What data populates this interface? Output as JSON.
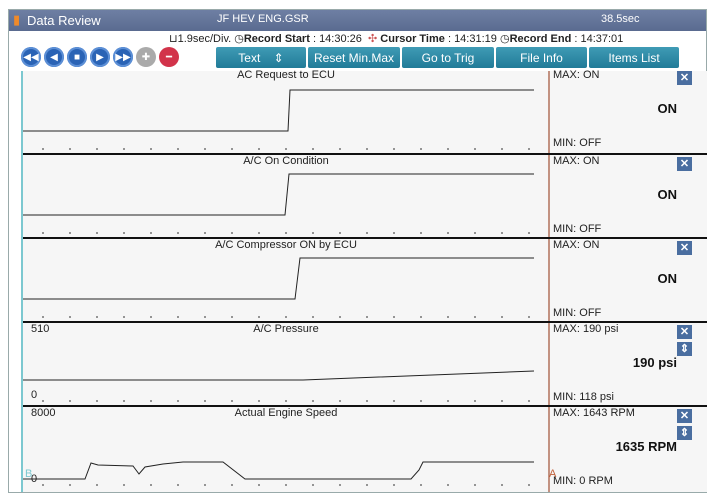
{
  "title": {
    "app": "Data Review",
    "file": "JF HEV ENG.GSR",
    "duration": "38.5sec"
  },
  "info": {
    "division": "1.9sec/Div.",
    "record_start_label": "Record Start",
    "record_start": "14:30:26",
    "cursor_time_label": "Cursor Time",
    "cursor_time": "14:31:19",
    "record_end_label": "Record End",
    "record_end": "14:37:01"
  },
  "toolbar": {
    "text": "Text",
    "reset": "Reset Min.Max",
    "trig": "Go to Trig",
    "file_info": "File Info",
    "items_list": "Items List"
  },
  "panels": [
    {
      "title": "AC Request to ECU",
      "max": "MAX: ON",
      "min": "MIN: OFF",
      "value": "ON",
      "top": "",
      "bottom": ""
    },
    {
      "title": "A/C On Condition",
      "max": "MAX: ON",
      "min": "MIN: OFF",
      "value": "ON",
      "top": "",
      "bottom": ""
    },
    {
      "title": "A/C Compressor ON by ECU",
      "max": "MAX: ON",
      "min": "MIN: OFF",
      "value": "ON",
      "top": "",
      "bottom": ""
    },
    {
      "title": "A/C Pressure",
      "max": "MAX:   190 psi",
      "min": "MIN:   118 psi",
      "value": "190 psi",
      "top": "510",
      "bottom": "0"
    },
    {
      "title": "Actual Engine Speed",
      "max": "MAX:  1643 RPM",
      "min": "MIN:     0 RPM",
      "value": "1635 RPM",
      "top": "8000",
      "bottom": "0"
    }
  ],
  "cursors": {
    "a": "A",
    "b": "B"
  },
  "colors": {
    "title_bar": "#5a6b90",
    "button": "#217b98",
    "cursor": "#b0705a"
  }
}
